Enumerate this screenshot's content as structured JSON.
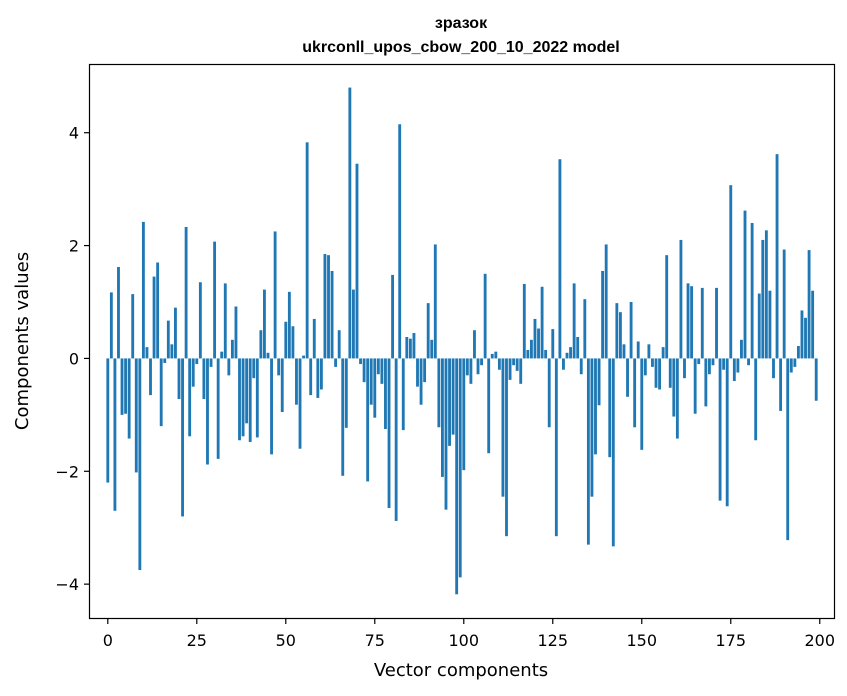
{
  "chart_data": {
    "type": "bar",
    "title": "зразок",
    "subtitle": "ukrconll_upos_cbow_200_10_2022 model",
    "xlabel": "Vector components",
    "ylabel": "Components values",
    "xlim": [
      -5,
      204
    ],
    "ylim": [
      -4.6,
      5.2
    ],
    "xticks": [
      0,
      25,
      50,
      75,
      100,
      125,
      150,
      175,
      200
    ],
    "xtick_labels": [
      "0",
      "25",
      "50",
      "75",
      "100",
      "125",
      "150",
      "175",
      "200"
    ],
    "yticks": [
      -4,
      -2,
      0,
      2,
      4
    ],
    "ytick_labels": [
      "−4",
      "−2",
      "0",
      "2",
      "4"
    ],
    "grid": false,
    "color": "#1f77b4",
    "x": [
      0,
      1,
      2,
      3,
      4,
      5,
      6,
      7,
      8,
      9,
      10,
      11,
      12,
      13,
      14,
      15,
      16,
      17,
      18,
      19,
      20,
      21,
      22,
      23,
      24,
      25,
      26,
      27,
      28,
      29,
      30,
      31,
      32,
      33,
      34,
      35,
      36,
      37,
      38,
      39,
      40,
      41,
      42,
      43,
      44,
      45,
      46,
      47,
      48,
      49,
      50,
      51,
      52,
      53,
      54,
      55,
      56,
      57,
      58,
      59,
      60,
      61,
      62,
      63,
      64,
      65,
      66,
      67,
      68,
      69,
      70,
      71,
      72,
      73,
      74,
      75,
      76,
      77,
      78,
      79,
      80,
      81,
      82,
      83,
      84,
      85,
      86,
      87,
      88,
      89,
      90,
      91,
      92,
      93,
      94,
      95,
      96,
      97,
      98,
      99,
      100,
      101,
      102,
      103,
      104,
      105,
      106,
      107,
      108,
      109,
      110,
      111,
      112,
      113,
      114,
      115,
      116,
      117,
      118,
      119,
      120,
      121,
      122,
      123,
      124,
      125,
      126,
      127,
      128,
      129,
      130,
      131,
      132,
      133,
      134,
      135,
      136,
      137,
      138,
      139,
      140,
      141,
      142,
      143,
      144,
      145,
      146,
      147,
      148,
      149,
      150,
      151,
      152,
      153,
      154,
      155,
      156,
      157,
      158,
      159,
      160,
      161,
      162,
      163,
      164,
      165,
      166,
      167,
      168,
      169,
      170,
      171,
      172,
      173,
      174,
      175,
      176,
      177,
      178,
      179,
      180,
      181,
      182,
      183,
      184,
      185,
      186,
      187,
      188,
      189,
      190,
      191,
      192,
      193,
      194,
      195,
      196,
      197,
      198,
      199
    ],
    "values": [
      -2.2,
      1.17,
      -2.7,
      1.62,
      -1.0,
      -0.98,
      -1.42,
      1.14,
      -2.02,
      -3.75,
      2.42,
      0.2,
      -0.65,
      1.45,
      1.7,
      -1.2,
      -0.08,
      0.67,
      0.25,
      0.9,
      -0.72,
      -2.8,
      2.33,
      -1.38,
      -0.5,
      -0.1,
      1.35,
      -0.72,
      -1.88,
      -0.15,
      2.07,
      -1.78,
      0.12,
      1.33,
      -0.3,
      0.33,
      0.92,
      -1.45,
      -1.38,
      -1.15,
      -1.48,
      -0.35,
      -1.4,
      0.5,
      1.22,
      0.1,
      -1.7,
      2.25,
      -0.3,
      -0.95,
      0.65,
      1.18,
      0.57,
      -0.82,
      -1.6,
      0.05,
      3.83,
      -0.65,
      0.7,
      -0.7,
      -0.55,
      1.85,
      1.83,
      1.55,
      -0.15,
      0.5,
      -2.08,
      -1.23,
      4.8,
      1.22,
      3.45,
      -0.1,
      -0.42,
      -2.18,
      -0.82,
      -1.05,
      -0.28,
      -0.45,
      -1.25,
      -2.65,
      1.48,
      -2.88,
      4.15,
      -1.27,
      0.38,
      0.35,
      0.45,
      -0.5,
      -0.82,
      -0.42,
      0.98,
      0.33,
      2.02,
      -1.22,
      -2.1,
      -2.68,
      -1.55,
      -1.35,
      -4.18,
      -3.88,
      -1.98,
      -0.3,
      -0.45,
      0.5,
      -0.28,
      -0.12,
      1.5,
      -1.68,
      0.08,
      0.12,
      -0.2,
      -2.45,
      -3.15,
      -0.38,
      -0.12,
      -0.22,
      -0.45,
      1.32,
      0.15,
      0.33,
      0.7,
      0.53,
      1.27,
      0.15,
      -1.22,
      0.52,
      -3.15,
      3.53,
      -0.2,
      0.1,
      0.2,
      1.33,
      0.38,
      -0.28,
      1.05,
      -3.3,
      -2.45,
      -1.7,
      -0.83,
      1.55,
      2.02,
      -1.75,
      -3.33,
      0.98,
      0.82,
      0.25,
      -0.68,
      1.0,
      -1.22,
      0.3,
      -1.62,
      -0.3,
      0.25,
      -0.15,
      -0.52,
      -0.55,
      0.2,
      1.83,
      -0.52,
      -1.03,
      -1.42,
      2.1,
      -0.35,
      1.33,
      1.28,
      -0.98,
      -0.1,
      1.25,
      -0.85,
      -0.28,
      -0.12,
      1.25,
      -2.52,
      -0.2,
      -2.62,
      3.07,
      -0.4,
      -0.25,
      0.33,
      2.62,
      -0.12,
      2.4,
      -1.45,
      1.15,
      2.1,
      2.27,
      1.2,
      -0.35,
      3.62,
      -0.93,
      1.93,
      -3.22,
      -0.25,
      -0.15,
      0.22,
      0.85,
      0.72,
      1.92,
      1.2,
      -0.75
    ]
  }
}
